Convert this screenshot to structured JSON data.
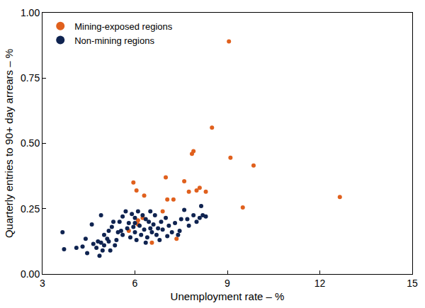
{
  "chart_data": {
    "type": "scatter",
    "x_label": "Unemployment rate – %",
    "y_label": "Quarterly entries to 90+ day arrears – %",
    "xlim": [
      3,
      15
    ],
    "xticks": [
      3,
      6,
      9,
      12,
      15
    ],
    "ylim": [
      0,
      1
    ],
    "yticks": [
      {
        "value": 0,
        "label": "0.00"
      },
      {
        "value": 0.25,
        "label": "0.25"
      },
      {
        "value": 0.5,
        "label": "0.50"
      },
      {
        "value": 0.75,
        "label": "0.75"
      },
      {
        "value": 1,
        "label": "1.00"
      }
    ],
    "grid": false,
    "legend": "upper left",
    "marker": "circle",
    "series": [
      {
        "name": "Mining-exposed regions",
        "color": "#e0601d",
        "x": [
          9.05,
          8.5,
          7.85,
          7.9,
          9.1,
          9.85,
          12.65,
          9.5,
          7.0,
          7.6,
          5.95,
          6.05,
          6.3,
          7.05,
          7.25,
          7.75,
          8.0,
          8.1,
          8.3,
          6.9,
          6.25,
          6.1,
          5.8,
          7.35,
          6.55,
          6.1
        ],
        "values": [
          0.89,
          0.56,
          0.46,
          0.47,
          0.445,
          0.415,
          0.295,
          0.255,
          0.37,
          0.355,
          0.35,
          0.32,
          0.3,
          0.285,
          0.285,
          0.315,
          0.32,
          0.33,
          0.315,
          0.24,
          0.215,
          0.19,
          0.165,
          0.135,
          0.12,
          0.205
        ]
      },
      {
        "name": "Non-mining regions",
        "color": "#0f2350",
        "x": [
          3.65,
          3.7,
          4.1,
          4.3,
          4.4,
          4.45,
          4.6,
          4.65,
          4.75,
          4.8,
          4.85,
          4.9,
          4.9,
          5.0,
          5.0,
          5.1,
          5.15,
          5.2,
          5.25,
          5.3,
          5.35,
          5.4,
          5.5,
          5.55,
          5.6,
          5.6,
          5.7,
          5.75,
          5.8,
          5.85,
          5.9,
          5.95,
          6.0,
          6.0,
          6.05,
          6.1,
          6.15,
          6.2,
          6.25,
          6.3,
          6.35,
          6.4,
          6.45,
          6.5,
          6.5,
          6.55,
          6.6,
          6.65,
          6.7,
          6.75,
          6.8,
          6.85,
          6.9,
          7.0,
          7.05,
          7.1,
          7.2,
          7.3,
          7.4,
          7.45,
          7.6,
          7.7,
          7.75,
          7.9,
          8.0,
          8.1,
          8.15,
          8.2,
          8.3,
          7.5,
          6.35,
          5.15,
          4.95,
          6.0,
          5.45
        ],
        "values": [
          0.16,
          0.095,
          0.1,
          0.105,
          0.135,
          0.08,
          0.19,
          0.115,
          0.1,
          0.125,
          0.07,
          0.225,
          0.12,
          0.11,
          0.15,
          0.135,
          0.165,
          0.09,
          0.18,
          0.2,
          0.11,
          0.13,
          0.2,
          0.165,
          0.22,
          0.15,
          0.24,
          0.175,
          0.195,
          0.14,
          0.23,
          0.18,
          0.215,
          0.16,
          0.13,
          0.24,
          0.185,
          0.15,
          0.225,
          0.17,
          0.21,
          0.14,
          0.2,
          0.175,
          0.24,
          0.16,
          0.19,
          0.225,
          0.15,
          0.175,
          0.13,
          0.2,
          0.17,
          0.215,
          0.145,
          0.185,
          0.16,
          0.195,
          0.15,
          0.165,
          0.245,
          0.21,
          0.185,
          0.225,
          0.2,
          0.215,
          0.26,
          0.225,
          0.22,
          0.21,
          0.12,
          0.125,
          0.09,
          0.195,
          0.16
        ]
      }
    ]
  }
}
